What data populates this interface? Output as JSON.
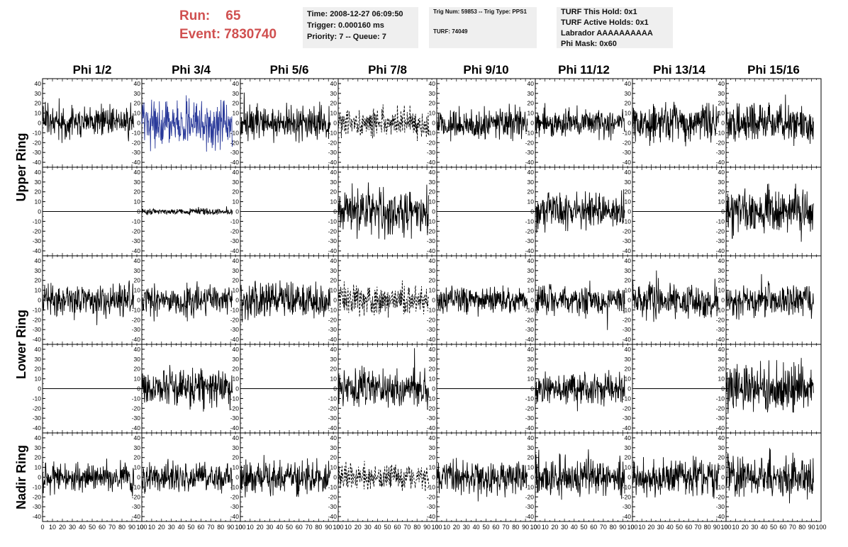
{
  "header": {
    "run_label": "Run:",
    "run_value": "65",
    "event_label": "Event:",
    "event_value": "7830740",
    "time": "Time: 2008-12-27 06:09:50",
    "trigger": "Trigger: 0.000160 ms",
    "priority": "Priority: 7 -- Queue: 7",
    "trig_num": "Trig Num: 59853 -- Trig Type: PPS1",
    "turf": "TURF: 74049",
    "turf_this_hold": "TURF This Hold: 0x1",
    "turf_active_holds": "TURF Active Holds: 0x1",
    "labrador": "Labrador AAAAAAAAAA",
    "phi_mask": "Phi Mask: 0x60",
    "color_run": "#d05050",
    "color_box": "#efefef"
  },
  "chart_data": {
    "type": "line",
    "columns": [
      "Phi 1/2",
      "Phi 3/4",
      "Phi 5/6",
      "Phi 7/8",
      "Phi 9/10",
      "Phi 11/12",
      "Phi 13/14",
      "Phi 15/16"
    ],
    "ring_labels": [
      {
        "text": "Upper Ring",
        "rows": [
          0,
          1
        ]
      },
      {
        "text": "Lower Ring",
        "rows": [
          2,
          3
        ]
      },
      {
        "text": "Nadir Ring",
        "rows": [
          4,
          4
        ]
      }
    ],
    "xlim": [
      0,
      100
    ],
    "ylim": [
      -45,
      45
    ],
    "x_ticks": [
      0,
      10,
      20,
      30,
      40,
      50,
      60,
      70,
      80,
      90,
      100
    ],
    "x_tick_labels": [
      "0",
      "10",
      "20",
      "30",
      "40",
      "50",
      "60",
      "70",
      "80",
      "90",
      "100"
    ],
    "y_ticks": [
      -40,
      -30,
      -20,
      -10,
      0,
      10,
      20,
      30,
      40
    ],
    "y_tick_labels": [
      "-40",
      "-30",
      "-20",
      "-10",
      "0",
      "10",
      "20",
      "30",
      "40"
    ],
    "x_data_range": [
      0,
      92
    ],
    "samples_per_trace": 260,
    "styles": {
      "normal": {
        "color": "#000000",
        "dash": ""
      },
      "highlight": {
        "color": "#2a3a9a",
        "dash": ""
      },
      "dashed": {
        "color": "#000000",
        "dash": "3,2"
      },
      "flat": {
        "color": "#000000",
        "dash": ""
      }
    },
    "traces": [
      [
        {
          "amp": 10,
          "style": "normal",
          "seed": 11
        },
        {
          "amp": 14,
          "style": "highlight",
          "seed": 12
        },
        {
          "amp": 11,
          "style": "normal",
          "seed": 13
        },
        {
          "amp": 9,
          "style": "dashed",
          "seed": 14
        },
        {
          "amp": 10,
          "style": "normal",
          "seed": 15
        },
        {
          "amp": 8,
          "style": "normal",
          "seed": 16
        },
        {
          "amp": 12,
          "style": "normal",
          "seed": 17
        },
        {
          "amp": 11,
          "style": "normal",
          "seed": 18
        }
      ],
      [
        {
          "amp": 0,
          "style": "flat",
          "seed": 21
        },
        {
          "amp": 2,
          "style": "normal",
          "seed": 22
        },
        {
          "amp": 0,
          "style": "flat",
          "seed": 23
        },
        {
          "amp": 14,
          "style": "normal",
          "seed": 24
        },
        {
          "amp": 0,
          "style": "flat",
          "seed": 25
        },
        {
          "amp": 11,
          "style": "normal",
          "seed": 26
        },
        {
          "amp": 0,
          "style": "flat",
          "seed": 27
        },
        {
          "amp": 14,
          "style": "normal",
          "seed": 28
        }
      ],
      [
        {
          "amp": 10,
          "style": "normal",
          "seed": 31
        },
        {
          "amp": 10,
          "style": "normal",
          "seed": 32
        },
        {
          "amp": 11,
          "style": "normal",
          "seed": 33
        },
        {
          "amp": 9,
          "style": "dashed",
          "seed": 34
        },
        {
          "amp": 8,
          "style": "normal",
          "seed": 35
        },
        {
          "amp": 9,
          "style": "normal",
          "seed": 36
        },
        {
          "amp": 11,
          "style": "normal",
          "seed": 37
        },
        {
          "amp": 10,
          "style": "normal",
          "seed": 38
        }
      ],
      [
        {
          "amp": 0,
          "style": "flat",
          "seed": 41
        },
        {
          "amp": 11,
          "style": "normal",
          "seed": 42
        },
        {
          "amp": 0,
          "style": "flat",
          "seed": 43
        },
        {
          "amp": 12,
          "style": "normal",
          "seed": 44
        },
        {
          "amp": 0,
          "style": "flat",
          "seed": 45
        },
        {
          "amp": 9,
          "style": "normal",
          "seed": 46
        },
        {
          "amp": 0,
          "style": "flat",
          "seed": 47
        },
        {
          "amp": 15,
          "style": "normal",
          "seed": 48
        }
      ],
      [
        {
          "amp": 9,
          "style": "normal",
          "seed": 51
        },
        {
          "amp": 9,
          "style": "normal",
          "seed": 52
        },
        {
          "amp": 10,
          "style": "normal",
          "seed": 53
        },
        {
          "amp": 8,
          "style": "dashed",
          "seed": 54
        },
        {
          "amp": 10,
          "style": "normal",
          "seed": 55
        },
        {
          "amp": 12,
          "style": "normal",
          "seed": 56
        },
        {
          "amp": 11,
          "style": "normal",
          "seed": 57
        },
        {
          "amp": 12,
          "style": "normal",
          "seed": 58
        }
      ]
    ]
  }
}
